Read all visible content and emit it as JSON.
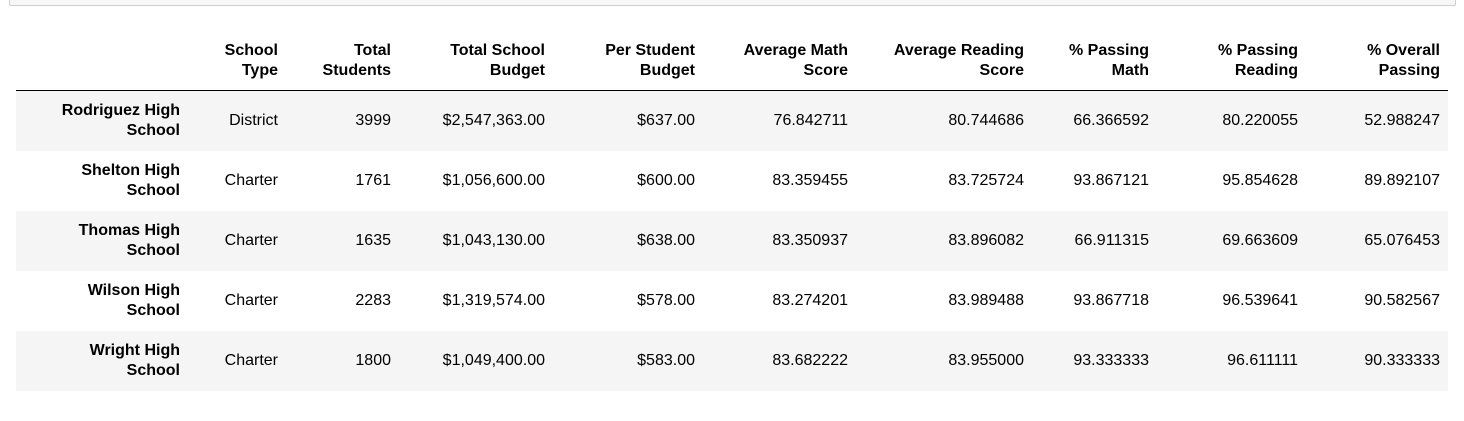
{
  "table": {
    "columns": [
      {
        "line1": "",
        "line2": ""
      },
      {
        "line1": "School",
        "line2": "Type"
      },
      {
        "line1": "Total",
        "line2": "Students"
      },
      {
        "line1": "Total School",
        "line2": "Budget"
      },
      {
        "line1": "Per Student",
        "line2": "Budget"
      },
      {
        "line1": "Average Math",
        "line2": "Score"
      },
      {
        "line1": "Average Reading",
        "line2": "Score"
      },
      {
        "line1": "% Passing",
        "line2": "Math"
      },
      {
        "line1": "% Passing",
        "line2": "Reading"
      },
      {
        "line1": "% Overall",
        "line2": "Passing"
      }
    ],
    "rows": [
      {
        "name_line1": "Rodriguez High",
        "name_line2": "School",
        "cells": [
          "District",
          "3999",
          "$2,547,363.00",
          "$637.00",
          "76.842711",
          "80.744686",
          "66.366592",
          "80.220055",
          "52.988247"
        ]
      },
      {
        "name_line1": "Shelton High",
        "name_line2": "School",
        "cells": [
          "Charter",
          "1761",
          "$1,056,600.00",
          "$600.00",
          "83.359455",
          "83.725724",
          "93.867121",
          "95.854628",
          "89.892107"
        ]
      },
      {
        "name_line1": "Thomas High",
        "name_line2": "School",
        "cells": [
          "Charter",
          "1635",
          "$1,043,130.00",
          "$638.00",
          "83.350937",
          "83.896082",
          "66.911315",
          "69.663609",
          "65.076453"
        ]
      },
      {
        "name_line1": "Wilson High",
        "name_line2": "School",
        "cells": [
          "Charter",
          "2283",
          "$1,319,574.00",
          "$578.00",
          "83.274201",
          "83.989488",
          "93.867718",
          "96.539641",
          "90.582567"
        ]
      },
      {
        "name_line1": "Wright High",
        "name_line2": "School",
        "cells": [
          "Charter",
          "1800",
          "$1,049,400.00",
          "$583.00",
          "83.682222",
          "83.955000",
          "93.333333",
          "96.611111",
          "90.333333"
        ]
      }
    ]
  }
}
